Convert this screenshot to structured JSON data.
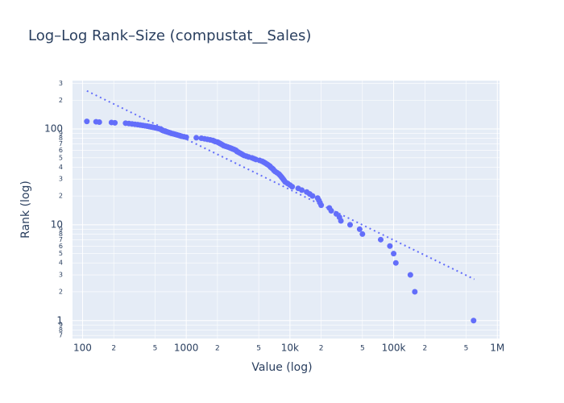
{
  "chart_data": {
    "type": "scatter",
    "title": "Log–Log Rank–Size (compustat__Sales)",
    "x_label": "Value (log)",
    "y_label": "Rank (log)",
    "x_log": true,
    "y_log": true,
    "grid": true,
    "xlim": [
      80,
      1050000
    ],
    "ylim": [
      0.65,
      320
    ],
    "xticks": [
      100,
      {
        "value": 200,
        "label": "2"
      },
      {
        "value": 500,
        "label": "5"
      },
      1000,
      {
        "value": 2000,
        "label": "2"
      },
      {
        "value": 5000,
        "label": "5"
      },
      {
        "value": 10000,
        "label": "10k"
      },
      {
        "value": 20000,
        "label": "2"
      },
      {
        "value": 50000,
        "label": "5"
      },
      {
        "value": 100000,
        "label": "100k"
      },
      {
        "value": 200000,
        "label": "2"
      },
      {
        "value": 500000,
        "label": "5"
      },
      {
        "value": 1000000,
        "label": "1M"
      }
    ],
    "yticks": [
      {
        "value": 0.7,
        "label": "7"
      },
      {
        "value": 0.8,
        "label": "8"
      },
      {
        "value": 0.9,
        "label": "9"
      },
      1,
      2,
      3,
      4,
      5,
      6,
      7,
      8,
      9,
      10,
      {
        "value": 20,
        "label": "2"
      },
      {
        "value": 30,
        "label": "3"
      },
      {
        "value": 40,
        "label": "4"
      },
      {
        "value": 50,
        "label": "5"
      },
      {
        "value": 60,
        "label": "6"
      },
      {
        "value": 70,
        "label": "7"
      },
      {
        "value": 80,
        "label": "8"
      },
      {
        "value": 90,
        "label": "9"
      },
      100,
      {
        "value": 200,
        "label": "2"
      },
      {
        "value": 300,
        "label": "3"
      }
    ],
    "series": [
      {
        "mode": "markers",
        "color": "#636efa",
        "x": [
          590000,
          160000,
          145000,
          105000,
          100000,
          92000,
          75000,
          50000,
          47000,
          38000,
          31000,
          30000,
          28000,
          25000,
          24000,
          20000,
          19500,
          19000,
          18500,
          16500,
          15500,
          14500,
          13000,
          12000,
          10500,
          10000,
          9500,
          9000,
          8800,
          8600,
          8400,
          8200,
          8000,
          7800,
          7500,
          7200,
          7000,
          6900,
          6700,
          6500,
          6400,
          6200,
          6000,
          5800,
          5600,
          5400,
          5100,
          4700,
          4500,
          4300,
          4000,
          3800,
          3600,
          3500,
          3400,
          3300,
          3200,
          3100,
          3050,
          3000,
          2900,
          2800,
          2700,
          2600,
          2500,
          2400,
          2300,
          2250,
          2200,
          2150,
          2100,
          2050,
          2000,
          1900,
          1850,
          1800,
          1700,
          1600,
          1500,
          1400,
          1250,
          1000,
          950,
          900,
          870,
          840,
          810,
          780,
          750,
          720,
          700,
          680,
          660,
          640,
          620,
          600,
          590,
          580,
          570,
          560,
          540,
          520,
          500,
          480,
          460,
          440,
          420,
          400,
          380,
          360,
          340,
          320,
          300,
          280,
          260,
          205,
          190,
          145,
          135,
          110
        ],
        "y": [
          1,
          2,
          3,
          4,
          5,
          6,
          7,
          8,
          9,
          10,
          11,
          12,
          13,
          14,
          15,
          16,
          17,
          18,
          19,
          20,
          21,
          22,
          23,
          24,
          25,
          26,
          27,
          28,
          29,
          30,
          31,
          32,
          33,
          34,
          35,
          36,
          37,
          38,
          39,
          40,
          41,
          42,
          43,
          44,
          45,
          46,
          47,
          48,
          49,
          50,
          51,
          52,
          53,
          54,
          55,
          56,
          57,
          58,
          59,
          60,
          61,
          62,
          63,
          64,
          65,
          66,
          67,
          68,
          69,
          70,
          71,
          72,
          73,
          74,
          75,
          76,
          77,
          78,
          79,
          80,
          81,
          82,
          83,
          84,
          85,
          86,
          87,
          88,
          89,
          90,
          91,
          92,
          93,
          94,
          95,
          96,
          97,
          98,
          99,
          100,
          101,
          102,
          103,
          104,
          105,
          106,
          107,
          108,
          109,
          110,
          111,
          112,
          113,
          114,
          115,
          116,
          117,
          118,
          119,
          120
        ]
      },
      {
        "mode": "line",
        "dash": "dot",
        "color": "#636efa",
        "x": [
          110,
          600000
        ],
        "y": [
          250,
          2.7
        ]
      }
    ]
  }
}
